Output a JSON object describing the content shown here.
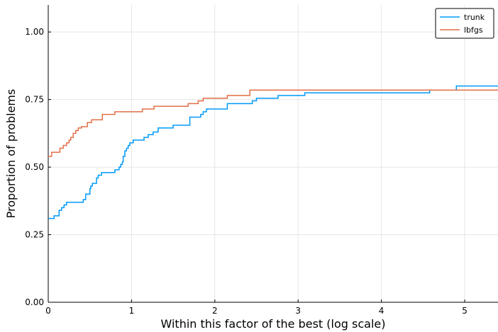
{
  "chart_data": {
    "type": "line",
    "line_shape": "step",
    "xlabel": "Within this factor of the best (log scale)",
    "ylabel": "Proportion of problems",
    "xlim": [
      0,
      5.4
    ],
    "ylim": [
      0,
      1.1
    ],
    "x_ticks": [
      0,
      1,
      2,
      3,
      4,
      5
    ],
    "x_tick_labels": [
      "0",
      "1",
      "2",
      "3",
      "4",
      "5"
    ],
    "y_ticks": [
      0,
      0.25,
      0.5,
      0.75,
      1.0
    ],
    "y_tick_labels": [
      "0.00",
      "0.25",
      "0.50",
      "0.75",
      "1.00"
    ],
    "grid": true,
    "legend_position": "top-right",
    "series": [
      {
        "name": "trunk",
        "color": "#009AFA",
        "x": [
          0,
          0.07,
          0.13,
          0.16,
          0.19,
          0.22,
          0.42,
          0.45,
          0.5,
          0.51,
          0.53,
          0.58,
          0.6,
          0.64,
          0.69,
          0.8,
          0.85,
          0.87,
          0.89,
          0.9,
          0.92,
          0.94,
          0.96,
          0.98,
          1.02,
          1.15,
          1.2,
          1.26,
          1.32,
          1.5,
          1.7,
          1.83,
          1.86,
          1.9,
          2.15,
          2.45,
          2.5,
          2.76,
          3.08,
          4.58,
          4.9,
          5.4
        ],
        "y": [
          0.31,
          0.32,
          0.34,
          0.35,
          0.36,
          0.37,
          0.38,
          0.4,
          0.42,
          0.43,
          0.44,
          0.46,
          0.47,
          0.48,
          0.48,
          0.49,
          0.5,
          0.51,
          0.52,
          0.54,
          0.56,
          0.57,
          0.58,
          0.59,
          0.6,
          0.61,
          0.62,
          0.63,
          0.645,
          0.655,
          0.685,
          0.695,
          0.705,
          0.715,
          0.735,
          0.745,
          0.755,
          0.765,
          0.775,
          0.785,
          0.8,
          0.8
        ]
      },
      {
        "name": "lbfgs",
        "color": "#E26F46",
        "x": [
          0,
          0.04,
          0.14,
          0.18,
          0.22,
          0.25,
          0.27,
          0.3,
          0.33,
          0.36,
          0.4,
          0.47,
          0.52,
          0.65,
          0.8,
          1.13,
          1.27,
          1.68,
          1.8,
          1.86,
          2.15,
          2.42,
          4.6,
          5.4
        ],
        "y": [
          0.54,
          0.555,
          0.57,
          0.58,
          0.59,
          0.6,
          0.61,
          0.625,
          0.635,
          0.645,
          0.65,
          0.665,
          0.675,
          0.695,
          0.705,
          0.715,
          0.725,
          0.735,
          0.745,
          0.755,
          0.765,
          0.785,
          0.785,
          0.785
        ]
      }
    ]
  }
}
